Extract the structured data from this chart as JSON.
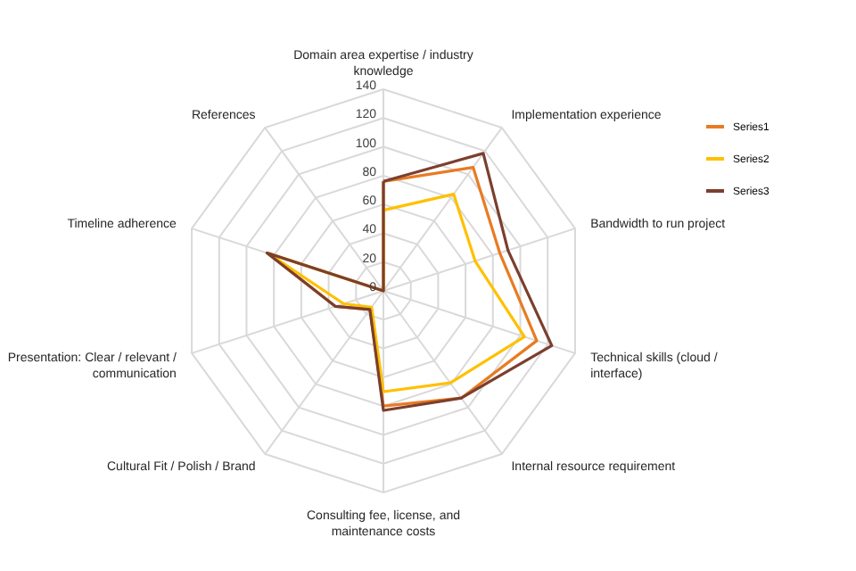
{
  "chart_data": {
    "type": "radar",
    "categories": [
      "Domain area expertise / industry knowledge",
      "Implementation experience",
      "Bandwidth to run project",
      "Technical skills (cloud / interface)",
      "Internal resource requirement",
      "Consulting fee, license, and maintenance costs",
      "Cultural Fit / Polish / Brand",
      "Presentation: Clear / relevant / communication",
      "Timeline adherence",
      "References"
    ],
    "series": [
      {
        "name": "Series1",
        "color": "#e87b22",
        "values": [
          76,
          106,
          85,
          112,
          92,
          80,
          16,
          35,
          85,
          0
        ]
      },
      {
        "name": "Series2",
        "color": "#ffc000",
        "values": [
          56,
          83,
          67,
          103,
          79,
          70,
          14,
          29,
          84,
          0
        ]
      },
      {
        "name": "Series3",
        "color": "#7b3f2e",
        "values": [
          76,
          118,
          91,
          123,
          92,
          83,
          16,
          35,
          85,
          0
        ]
      }
    ],
    "ylim": [
      0,
      140
    ],
    "yticks": [
      0,
      20,
      40,
      60,
      80,
      100,
      120,
      140
    ],
    "grid": true,
    "legend": "right"
  }
}
